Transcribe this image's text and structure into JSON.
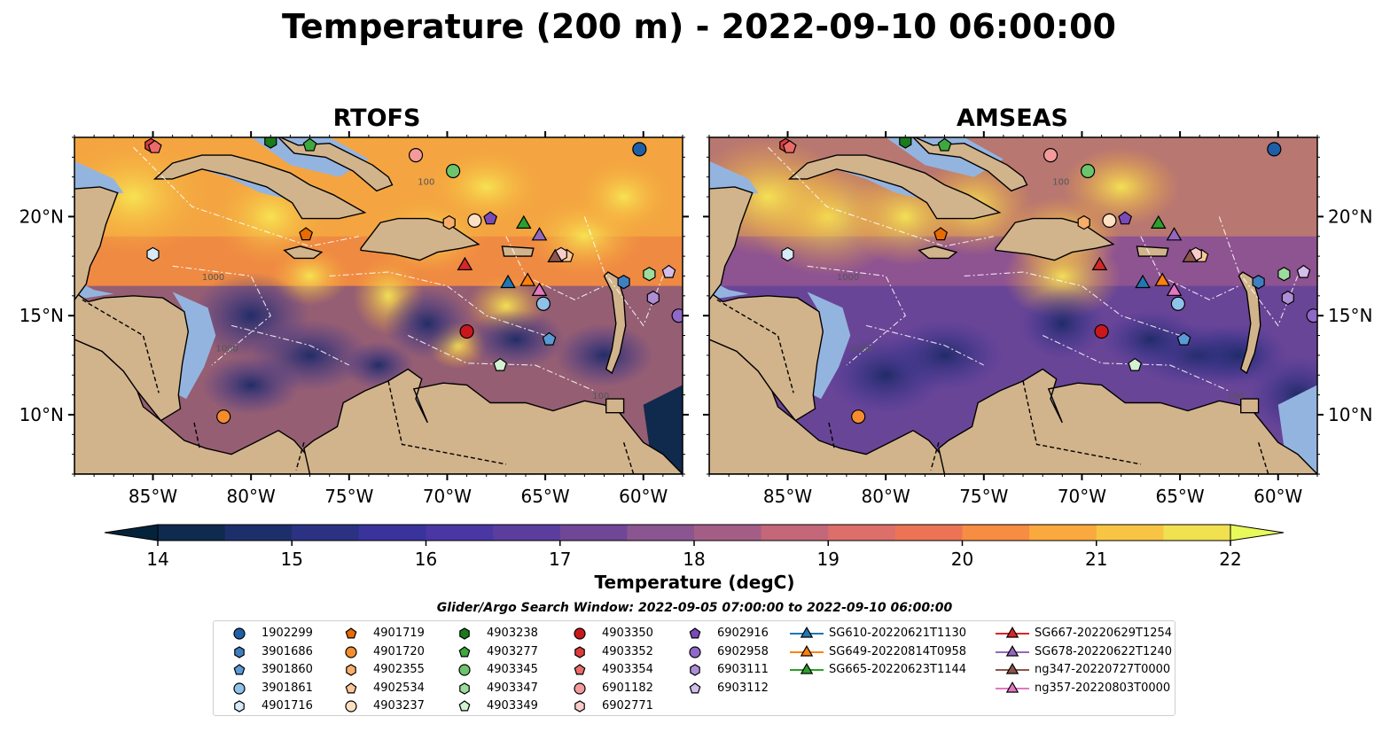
{
  "title": "Temperature (200 m) - 2022-09-10 06:00:00",
  "panels": [
    {
      "id": "rtofs",
      "title": "RTOFS"
    },
    {
      "id": "amseas",
      "title": "AMSEAS"
    }
  ],
  "axes": {
    "lon_ticks": [
      "85°W",
      "80°W",
      "75°W",
      "70°W",
      "65°W",
      "60°W"
    ],
    "lat_ticks": [
      "20°N",
      "15°N",
      "10°N"
    ],
    "lon_range": [
      -89,
      -58
    ],
    "lat_range": [
      7,
      24
    ]
  },
  "colorbar": {
    "label": "Temperature (degC)",
    "ticks": [
      "14",
      "15",
      "16",
      "17",
      "18",
      "19",
      "20",
      "21",
      "22"
    ],
    "range": [
      13.5,
      22.5
    ],
    "cmap": "thermal",
    "extend": "both"
  },
  "contours": {
    "labels": [
      "100",
      "1000"
    ]
  },
  "search_window": "Glider/Argo Search Window: 2022-09-05 07:00:00 to 2022-09-10 06:00:00",
  "colors": {
    "land": "#d2b48c",
    "shallow": "#94b4e0",
    "platform_outline": "#000000"
  },
  "legend": [
    {
      "name": "1902299",
      "marker": "circle",
      "color": "#1f5fa8"
    },
    {
      "name": "3901686",
      "marker": "hexagon",
      "color": "#3f7fc0"
    },
    {
      "name": "3901860",
      "marker": "pentagon",
      "color": "#5a9ad5"
    },
    {
      "name": "3901861",
      "marker": "circle",
      "color": "#8ec2e8"
    },
    {
      "name": "4901716",
      "marker": "hexagon",
      "color": "#d6eaf8"
    },
    {
      "name": "4901719",
      "marker": "pentagon",
      "color": "#e86a00"
    },
    {
      "name": "4901720",
      "marker": "circle",
      "color": "#f58d2e"
    },
    {
      "name": "4902355",
      "marker": "hexagon",
      "color": "#f8ae6a"
    },
    {
      "name": "4902534",
      "marker": "pentagon",
      "color": "#fbc796"
    },
    {
      "name": "4903237",
      "marker": "circle",
      "color": "#fde0c2"
    },
    {
      "name": "4903238",
      "marker": "hexagon",
      "color": "#1b7a1b"
    },
    {
      "name": "4903277",
      "marker": "pentagon",
      "color": "#3ea83e"
    },
    {
      "name": "4903345",
      "marker": "circle",
      "color": "#6cc56c"
    },
    {
      "name": "4903347",
      "marker": "hexagon",
      "color": "#9cdc9c"
    },
    {
      "name": "4903349",
      "marker": "pentagon",
      "color": "#d2f2d2"
    },
    {
      "name": "4903350",
      "marker": "circle",
      "color": "#c8181e"
    },
    {
      "name": "4903352",
      "marker": "hexagon",
      "color": "#dc3c3c"
    },
    {
      "name": "4903354",
      "marker": "pentagon",
      "color": "#eb6a6a"
    },
    {
      "name": "6901182",
      "marker": "circle",
      "color": "#f39a9a"
    },
    {
      "name": "6902771",
      "marker": "hexagon",
      "color": "#f9cccc"
    },
    {
      "name": "6902916",
      "marker": "pentagon",
      "color": "#7a4ab8"
    },
    {
      "name": "6902958",
      "marker": "circle",
      "color": "#9068c8"
    },
    {
      "name": "6903111",
      "marker": "hexagon",
      "color": "#ad8ed6"
    },
    {
      "name": "6903112",
      "marker": "pentagon",
      "color": "#d2bdec"
    },
    {
      "name": "SG610-20220621T1130",
      "marker": "triangle",
      "color": "#1f77b4"
    },
    {
      "name": "SG649-20220814T0958",
      "marker": "triangle",
      "color": "#ff7f0e"
    },
    {
      "name": "SG665-20220623T1144",
      "marker": "triangle",
      "color": "#2ca02c"
    },
    {
      "name": "SG667-20220629T1254",
      "marker": "triangle",
      "color": "#d62728"
    },
    {
      "name": "SG678-20220622T1240",
      "marker": "triangle",
      "color": "#9467bd"
    },
    {
      "name": "ng347-20220727T0000",
      "marker": "triangle",
      "color": "#8c564b"
    },
    {
      "name": "ng357-20220803T0000",
      "marker": "triangle",
      "color": "#e377c2"
    }
  ],
  "platform_positions": [
    {
      "name": "1902299",
      "lon": -60.2,
      "lat": 23.4
    },
    {
      "name": "3901686",
      "lon": -61.0,
      "lat": 16.7
    },
    {
      "name": "3901860",
      "lon": -64.8,
      "lat": 13.8
    },
    {
      "name": "3901861",
      "lon": -65.1,
      "lat": 15.6
    },
    {
      "name": "4901716",
      "lon": -85.0,
      "lat": 18.1
    },
    {
      "name": "4901719",
      "lon": -77.2,
      "lat": 19.1
    },
    {
      "name": "4901720",
      "lon": -81.4,
      "lat": 9.9
    },
    {
      "name": "4902355",
      "lon": -69.9,
      "lat": 19.7
    },
    {
      "name": "4902534",
      "lon": -63.9,
      "lat": 18.0
    },
    {
      "name": "4903237",
      "lon": -68.6,
      "lat": 19.8
    },
    {
      "name": "4903238",
      "lon": -79.0,
      "lat": 23.8
    },
    {
      "name": "4903277",
      "lon": -77.0,
      "lat": 23.6
    },
    {
      "name": "4903345",
      "lon": -69.7,
      "lat": 22.3
    },
    {
      "name": "4903347",
      "lon": -59.7,
      "lat": 17.1
    },
    {
      "name": "4903349",
      "lon": -67.3,
      "lat": 12.5
    },
    {
      "name": "4903350",
      "lon": -69.0,
      "lat": 14.2
    },
    {
      "name": "4903352",
      "lon": -85.1,
      "lat": 23.6
    },
    {
      "name": "4903354",
      "lon": -84.9,
      "lat": 23.5
    },
    {
      "name": "6901182",
      "lon": -71.6,
      "lat": 23.1
    },
    {
      "name": "6902771",
      "lon": -64.2,
      "lat": 18.1
    },
    {
      "name": "6902916",
      "lon": -67.8,
      "lat": 19.9
    },
    {
      "name": "6902958",
      "lon": -58.2,
      "lat": 15.0
    },
    {
      "name": "6903111",
      "lon": -59.5,
      "lat": 15.9
    },
    {
      "name": "6903112",
      "lon": -58.7,
      "lat": 17.2
    },
    {
      "name": "SG610-20220621T1130",
      "lon": -66.9,
      "lat": 16.7
    },
    {
      "name": "SG649-20220814T0958",
      "lon": -65.9,
      "lat": 16.8
    },
    {
      "name": "SG665-20220623T1144",
      "lon": -66.1,
      "lat": 19.7
    },
    {
      "name": "SG667-20220629T1254",
      "lon": -69.1,
      "lat": 17.6
    },
    {
      "name": "SG678-20220622T1240",
      "lon": -65.3,
      "lat": 19.1
    },
    {
      "name": "ng347-20220727T0000",
      "lon": -64.5,
      "lat": 18.0
    },
    {
      "name": "ng357-20220803T0000",
      "lon": -65.3,
      "lat": 16.3
    }
  ]
}
